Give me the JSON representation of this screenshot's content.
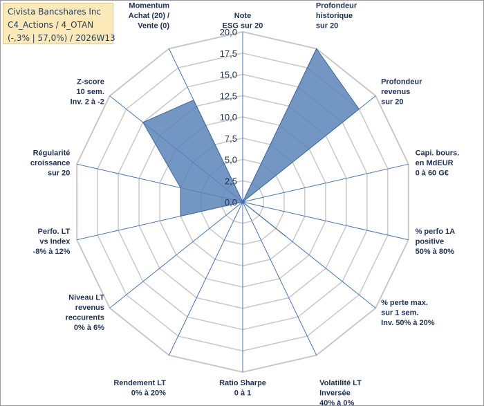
{
  "header": {
    "line1": "Civista Bancshares Inc",
    "line2": "C4_Actions / 4_OTAN",
    "line3": "(-,3% | 57,0%) / 2026W13"
  },
  "colors": {
    "fill": "#5b84b8",
    "stroke": "#3d6aa5",
    "grid": "#c8c8c8",
    "spoke": "#4472c4",
    "text": "#1f2f55"
  },
  "chart_data": {
    "type": "radar",
    "rmin": 0,
    "rmax": 20,
    "tick_step": 2.5,
    "tick_labels": [
      "0,0",
      "2,5",
      "5,0",
      "7,5",
      "10,0",
      "12,5",
      "15,0",
      "17,5",
      "20,0"
    ],
    "axes": [
      {
        "label": [
          "Note",
          "ESG sur 20"
        ],
        "value": 0
      },
      {
        "label": [
          "Profondeur",
          "historique",
          "sur 20"
        ],
        "value": 20
      },
      {
        "label": [
          "Profondeur",
          "revenus",
          "sur 20"
        ],
        "value": 17.5
      },
      {
        "label": [
          "Capi. bours.",
          "en MdEUR",
          "0 à 60 G€"
        ],
        "value": 0
      },
      {
        "label": [
          "% perfo 1A",
          "positive",
          "50% à 80%"
        ],
        "value": 0
      },
      {
        "label": [
          "% perte max.",
          "sur 1 sem.",
          "Inv. 50% à 20%"
        ],
        "value": 6.5
      },
      {
        "label": [
          "Volatilité LT",
          "Inversée",
          "40% à 0%"
        ],
        "value": 0
      },
      {
        "label": [
          "Ratio Sharpe",
          "0 à 1"
        ],
        "value": 0
      },
      {
        "label": [
          "Rendement LT",
          "0% à 20%"
        ],
        "value": 0
      },
      {
        "label": [
          "Niveau LT",
          "revenus",
          "reccurents",
          "0% à 6%"
        ],
        "value": 0
      },
      {
        "label": [
          "Perfo. LT",
          "vs Index",
          "-8% à 12%"
        ],
        "value": 7.5
      },
      {
        "label": [
          "Régularité",
          "croissance",
          "sur 20"
        ],
        "value": 7.5
      },
      {
        "label": [
          "Z-score",
          "10 sem.",
          "Inv. 2 à -2"
        ],
        "value": 15
      },
      {
        "label": [
          "Momentum",
          "Achat (20) /",
          "Vente (0)"
        ],
        "value": 13.3
      }
    ]
  }
}
